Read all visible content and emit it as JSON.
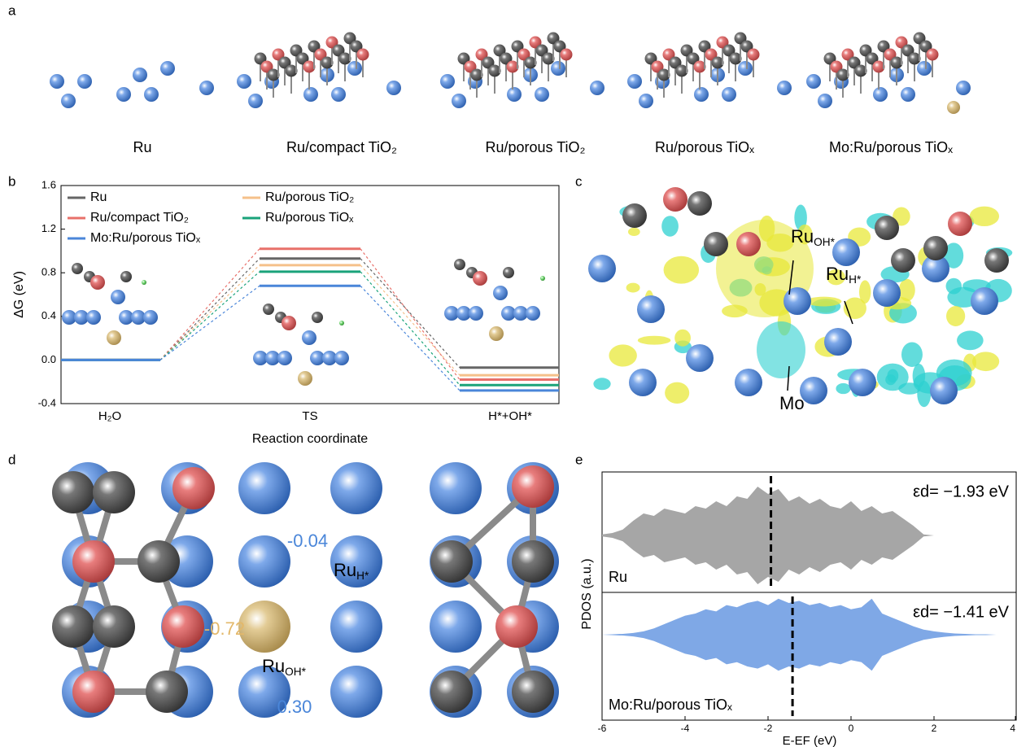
{
  "panel_labels": [
    "a",
    "b",
    "c",
    "d",
    "e"
  ],
  "structures": [
    "Ru",
    "Ru/compact TiO₂",
    "Ru/porous TiO₂",
    "Ru/porous TiOₓ",
    "Mo:Ru/porous TiOₓ"
  ],
  "charge_density": {
    "labels": [
      {
        "text": "Ru",
        "sub": "OH*"
      },
      {
        "text": "Ru",
        "sub": "H*"
      },
      {
        "text": "Mo"
      }
    ]
  },
  "bader_charges": {
    "labels": [
      {
        "text": "-0.04"
      },
      {
        "text": "Ru",
        "sub": "H*"
      },
      {
        "text": "-0.72"
      },
      {
        "text": "Ru",
        "sub": "OH*"
      },
      {
        "text": "0.30"
      }
    ]
  },
  "chart_data": [
    {
      "type": "line",
      "xlabel": "Reaction coordinate",
      "ylabel": "ΔG (eV)",
      "categories": [
        "H₂O",
        "TS",
        "H*+OH*"
      ],
      "ylim": [
        -0.4,
        1.6
      ],
      "yticks": [
        -0.4,
        {
          "value": 0,
          "label": "0.0"
        },
        0.4,
        0.8,
        1.2,
        1.6
      ],
      "legend": "upper left",
      "series": [
        {
          "name": "Ru",
          "color": "#666666",
          "values": [
            0,
            0.93,
            -0.07
          ]
        },
        {
          "name": "Ru/compact TiO₂",
          "color": "#e8706a",
          "values": [
            0,
            1.02,
            -0.18
          ]
        },
        {
          "name": "Mo:Ru/porous TiOₓ",
          "color": "#4a86d9",
          "values": [
            0,
            0.68,
            -0.28
          ]
        },
        {
          "name": "Ru/porous TiO₂",
          "color": "#f5c08a",
          "values": [
            0,
            0.87,
            -0.14
          ]
        },
        {
          "name": "Ru/porous TiOₓ",
          "color": "#1aa37a",
          "values": [
            0,
            0.81,
            -0.23
          ]
        }
      ]
    },
    {
      "type": "area",
      "xlabel": "E-EF (eV)",
      "ylabel": "PDOS (a.u.)",
      "xlim": [
        -6,
        4
      ],
      "xticks": [
        -6,
        -4,
        -2,
        0,
        2,
        4
      ],
      "x": [
        -6,
        -5.75,
        -5.5,
        -5.25,
        -5,
        -4.75,
        -4.5,
        -4.25,
        -4,
        -3.75,
        -3.5,
        -3.25,
        -3,
        -2.75,
        -2.5,
        -2.25,
        -2,
        -1.75,
        -1.5,
        -1.25,
        -1,
        -0.75,
        -0.5,
        -0.25,
        0,
        0.25,
        0.5,
        0.75,
        1,
        1.25,
        1.5,
        1.75,
        2,
        2.25,
        2.5,
        2.75,
        3,
        3.25,
        3.5,
        3.75,
        4
      ],
      "series": [
        {
          "name": "Ru",
          "color": "#a6a6a6",
          "values": [
            0.02,
            0.05,
            0.12,
            0.3,
            0.45,
            0.4,
            0.55,
            0.5,
            0.45,
            0.6,
            0.55,
            0.7,
            0.6,
            0.8,
            0.75,
            1.0,
            0.85,
            0.95,
            0.7,
            0.8,
            0.65,
            0.75,
            0.6,
            0.55,
            0.7,
            0.5,
            0.6,
            0.45,
            0.5,
            0.35,
            0.2,
            0.02,
            0,
            0,
            0,
            0,
            0,
            0,
            0,
            0,
            0
          ],
          "d_band": {
            "value": -1.93,
            "label": "εd= −1.93 eV"
          }
        },
        {
          "name": "Mo:Ru/porous TiOₓ",
          "color": "#7fa8e6",
          "values": [
            0,
            0.01,
            0.02,
            0.04,
            0.08,
            0.15,
            0.25,
            0.35,
            0.45,
            0.5,
            0.6,
            0.55,
            0.7,
            0.65,
            0.75,
            0.8,
            0.7,
            0.85,
            0.75,
            0.8,
            0.7,
            0.75,
            0.65,
            0.7,
            0.6,
            0.65,
            0.85,
            0.5,
            0.4,
            0.3,
            0.2,
            0.12,
            0.08,
            0.05,
            0.03,
            0.02,
            0.01,
            0.01,
            0,
            0,
            0
          ],
          "d_band": {
            "value": -1.41,
            "label": "εd= −1.41 eV"
          }
        }
      ]
    }
  ]
}
